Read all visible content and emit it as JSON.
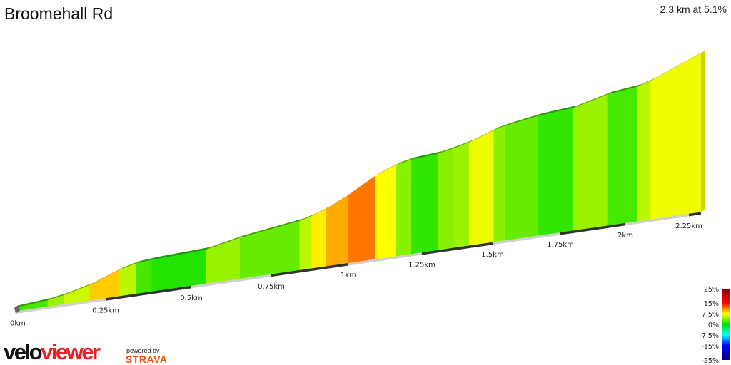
{
  "header": {
    "title": "Broomehall Rd",
    "summary": "2.3 km at 5.1%"
  },
  "chart_data": {
    "type": "area",
    "style": "3d-elevation-profile colored by gradient",
    "total_distance_km": 2.3,
    "average_gradient_pct": 5.1,
    "x_ticks": [
      "0km",
      "0.25km",
      "0.5km",
      "0.75km",
      "1km",
      "1.25km",
      "1.5km",
      "1.75km",
      "2km",
      "2.25km"
    ],
    "x_tick_values": [
      0,
      0.25,
      0.5,
      0.75,
      1,
      1.25,
      1.5,
      1.75,
      2,
      2.25
    ],
    "segments": [
      {
        "from_km": 0,
        "to_km": 0.089,
        "gradient_pct": 2
      },
      {
        "from_km": 0.089,
        "to_km": 0.135,
        "gradient_pct": 4.5
      },
      {
        "from_km": 0.135,
        "to_km": 0.204,
        "gradient_pct": 6
      },
      {
        "from_km": 0.204,
        "to_km": 0.29,
        "gradient_pct": 9
      },
      {
        "from_km": 0.29,
        "to_km": 0.338,
        "gradient_pct": 5.5
      },
      {
        "from_km": 0.338,
        "to_km": 0.385,
        "gradient_pct": 2
      },
      {
        "from_km": 0.385,
        "to_km": 0.545,
        "gradient_pct": 1
      },
      {
        "from_km": 0.545,
        "to_km": 0.652,
        "gradient_pct": 4.5
      },
      {
        "from_km": 0.652,
        "to_km": 0.842,
        "gradient_pct": 3
      },
      {
        "from_km": 0.842,
        "to_km": 0.881,
        "gradient_pct": 5.5
      },
      {
        "from_km": 0.881,
        "to_km": 0.928,
        "gradient_pct": 8
      },
      {
        "from_km": 0.928,
        "to_km": 0.998,
        "gradient_pct": 10
      },
      {
        "from_km": 0.998,
        "to_km": 1.093,
        "gradient_pct": 11.5
      },
      {
        "from_km": 1.093,
        "to_km": 1.163,
        "gradient_pct": 7.5
      },
      {
        "from_km": 1.163,
        "to_km": 1.214,
        "gradient_pct": 4
      },
      {
        "from_km": 1.214,
        "to_km": 1.306,
        "gradient_pct": 1.5
      },
      {
        "from_km": 1.306,
        "to_km": 1.361,
        "gradient_pct": 4
      },
      {
        "from_km": 1.361,
        "to_km": 1.417,
        "gradient_pct": 4.5
      },
      {
        "from_km": 1.417,
        "to_km": 1.505,
        "gradient_pct": 7
      },
      {
        "from_km": 1.505,
        "to_km": 1.547,
        "gradient_pct": 4
      },
      {
        "from_km": 1.547,
        "to_km": 1.668,
        "gradient_pct": 3
      },
      {
        "from_km": 1.668,
        "to_km": 1.8,
        "gradient_pct": 1.5
      },
      {
        "from_km": 1.8,
        "to_km": 1.931,
        "gradient_pct": 4.5
      },
      {
        "from_km": 1.931,
        "to_km": 2.048,
        "gradient_pct": 2
      },
      {
        "from_km": 2.048,
        "to_km": 2.1,
        "gradient_pct": 5.5
      },
      {
        "from_km": 2.1,
        "to_km": 2.3,
        "gradient_pct": 7
      }
    ],
    "legend": {
      "labels": [
        "25%",
        "15%",
        "7.5%",
        "0%",
        "-7.5%",
        "-15%",
        "-25%"
      ],
      "values": [
        25,
        15,
        7.5,
        0,
        -7.5,
        -15,
        -25
      ],
      "colors": [
        "#800000",
        "#ff0000",
        "#ffff00",
        "#00e000",
        "#00ffff",
        "#0000ff",
        "#000080"
      ],
      "placement": "bottom-right"
    }
  },
  "branding": {
    "logo_part1": "velo",
    "logo_part2": "viewer",
    "powered_by": "powered by",
    "strava": "STRAVA",
    "logo_red": "#e8202a",
    "strava_orange": "#fc4c02"
  }
}
